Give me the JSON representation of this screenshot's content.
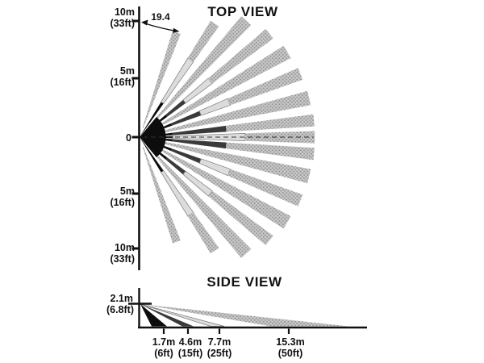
{
  "figure": {
    "description": "PIR motion detector coverage pattern, top and side views"
  },
  "zones": {
    "near": {
      "range": "0-1.7m",
      "color": "#0d0d0d"
    },
    "mid": {
      "range": "1.7-4.6m",
      "color": "#3a3a3a"
    },
    "far": {
      "range": "4.6-7.7m",
      "color": "#dcdcdc"
    },
    "max": {
      "range": "7.7-15.3m",
      "color": "stipple"
    }
  },
  "top_view": {
    "title": "TOP VIEW",
    "beam_angle_from_axis_deg": "19.4",
    "axis_ticks": [
      {
        "label": "10m",
        "sub": "(33ft)"
      },
      {
        "label": "5m",
        "sub": "(16ft)"
      },
      {
        "label": "0",
        "sub": ""
      },
      {
        "label": "5m",
        "sub": "(16ft)"
      },
      {
        "label": "10m",
        "sub": "(33ft)"
      }
    ],
    "core": {
      "spread_deg": 100,
      "radius_m": 2.3
    },
    "beams": [
      {
        "angle_deg": 70.5,
        "half_width_deg": 2.2,
        "segments": [
          {
            "zone": "max",
            "from_m": 0.9,
            "to_m": 9.7
          }
        ]
      },
      {
        "angle_deg": 56.5,
        "half_width_deg": 2.1,
        "segments": [
          {
            "zone": "near",
            "from_m": 0.25,
            "to_m": 3.6
          },
          {
            "zone": "far",
            "from_m": 3.6,
            "to_m": 8.1
          },
          {
            "zone": "max",
            "from_m": 8.1,
            "to_m": 11.9
          }
        ]
      },
      {
        "angle_deg": 47.5,
        "half_width_deg": 2.4,
        "segments": [
          {
            "zone": "max",
            "from_m": 1.1,
            "to_m": 13.8
          }
        ]
      },
      {
        "angle_deg": 38.5,
        "half_width_deg": 2.1,
        "segments": [
          {
            "zone": "near",
            "from_m": 0.25,
            "to_m": 3.0
          },
          {
            "zone": "mid",
            "from_m": 3.0,
            "to_m": 5.0
          },
          {
            "zone": "far",
            "from_m": 5.0,
            "to_m": 7.9
          },
          {
            "zone": "max",
            "from_m": 7.9,
            "to_m": 14.5
          }
        ]
      },
      {
        "angle_deg": 30,
        "half_width_deg": 2.4,
        "segments": [
          {
            "zone": "max",
            "from_m": 1.1,
            "to_m": 14.9
          }
        ]
      },
      {
        "angle_deg": 21.5,
        "half_width_deg": 2.1,
        "segments": [
          {
            "zone": "near",
            "from_m": 0.25,
            "to_m": 3.0
          },
          {
            "zone": "mid",
            "from_m": 3.0,
            "to_m": 5.7
          },
          {
            "zone": "far",
            "from_m": 5.7,
            "to_m": 8.4
          },
          {
            "zone": "max",
            "from_m": 8.4,
            "to_m": 15.1
          }
        ]
      },
      {
        "angle_deg": 13,
        "half_width_deg": 2.4,
        "segments": [
          {
            "zone": "max",
            "from_m": 1.1,
            "to_m": 15.2
          }
        ]
      },
      {
        "angle_deg": 5.5,
        "half_width_deg": 2.0,
        "segments": [
          {
            "zone": "near",
            "from_m": 0.25,
            "to_m": 2.9
          },
          {
            "zone": "mid",
            "from_m": 2.9,
            "to_m": 7.6
          },
          {
            "zone": "max",
            "from_m": 7.6,
            "to_m": 15.3
          }
        ]
      },
      {
        "angle_deg": 0,
        "half_width_deg": 2.0,
        "segments": [
          {
            "zone": "near",
            "from_m": 0.25,
            "to_m": 2.9
          },
          {
            "zone": "far",
            "from_m": 2.9,
            "to_m": 9.2
          },
          {
            "zone": "max",
            "from_m": 9.2,
            "to_m": 15.3
          }
        ]
      },
      {
        "angle_deg": -5.5,
        "half_width_deg": 2.0,
        "segments": [
          {
            "zone": "near",
            "from_m": 0.25,
            "to_m": 2.9
          },
          {
            "zone": "mid",
            "from_m": 2.9,
            "to_m": 7.6
          },
          {
            "zone": "max",
            "from_m": 7.6,
            "to_m": 15.3
          }
        ]
      },
      {
        "angle_deg": -13,
        "half_width_deg": 2.4,
        "segments": [
          {
            "zone": "max",
            "from_m": 1.1,
            "to_m": 15.2
          }
        ]
      },
      {
        "angle_deg": -21.5,
        "half_width_deg": 2.1,
        "segments": [
          {
            "zone": "near",
            "from_m": 0.25,
            "to_m": 3.0
          },
          {
            "zone": "mid",
            "from_m": 3.0,
            "to_m": 5.7
          },
          {
            "zone": "far",
            "from_m": 5.7,
            "to_m": 8.4
          },
          {
            "zone": "max",
            "from_m": 8.4,
            "to_m": 15.1
          }
        ]
      },
      {
        "angle_deg": -30,
        "half_width_deg": 2.4,
        "segments": [
          {
            "zone": "max",
            "from_m": 1.1,
            "to_m": 14.9
          }
        ]
      },
      {
        "angle_deg": -38.5,
        "half_width_deg": 2.1,
        "segments": [
          {
            "zone": "near",
            "from_m": 0.25,
            "to_m": 3.0
          },
          {
            "zone": "mid",
            "from_m": 3.0,
            "to_m": 5.0
          },
          {
            "zone": "far",
            "from_m": 5.0,
            "to_m": 7.9
          },
          {
            "zone": "max",
            "from_m": 7.9,
            "to_m": 14.5
          }
        ]
      },
      {
        "angle_deg": -47.5,
        "half_width_deg": 2.4,
        "segments": [
          {
            "zone": "max",
            "from_m": 1.1,
            "to_m": 13.8
          }
        ]
      },
      {
        "angle_deg": -56.5,
        "half_width_deg": 2.1,
        "segments": [
          {
            "zone": "near",
            "from_m": 0.25,
            "to_m": 3.6
          },
          {
            "zone": "far",
            "from_m": 3.6,
            "to_m": 8.1
          },
          {
            "zone": "max",
            "from_m": 8.1,
            "to_m": 11.9
          }
        ]
      },
      {
        "angle_deg": -70.5,
        "half_width_deg": 2.2,
        "segments": [
          {
            "zone": "max",
            "from_m": 0.9,
            "to_m": 9.7
          }
        ]
      }
    ]
  },
  "side_view": {
    "title": "SIDE VIEW",
    "mount_height": {
      "label": "2.1m",
      "sub": "(6.8ft)"
    },
    "floor_distances": [
      {
        "label": "1.7m",
        "sub": "(6ft)"
      },
      {
        "label": "4.6m",
        "sub": "(15ft)"
      },
      {
        "label": "7.7m",
        "sub": "(25ft)"
      },
      {
        "label": "15.3m",
        "sub": "(50ft)"
      }
    ]
  }
}
